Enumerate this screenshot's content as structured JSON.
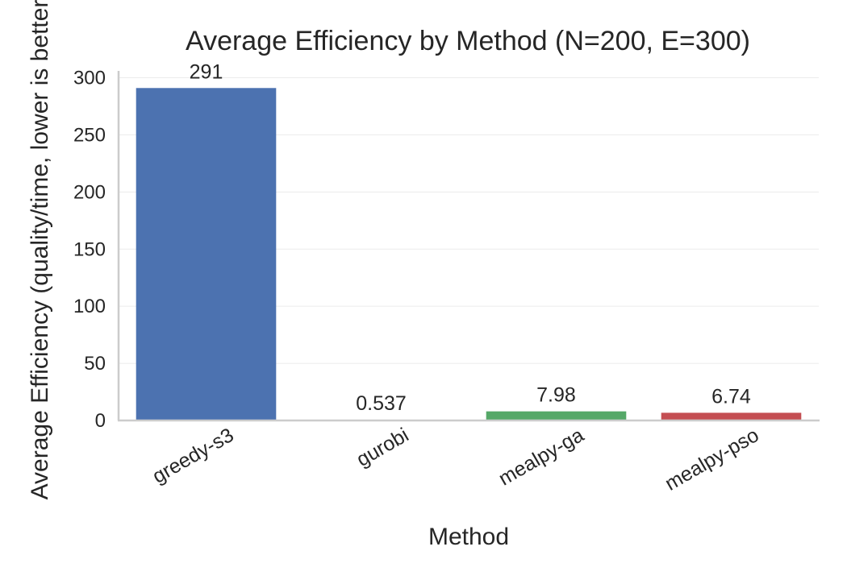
{
  "chart_data": {
    "type": "bar",
    "title": "Average Efficiency by Method (N=200, E=300)",
    "xlabel": "Method",
    "ylabel": "Average Efficiency (quality/time, lower is better)",
    "categories": [
      "greedy-s3",
      "gurobi",
      "mealpy-ga",
      "mealpy-pso"
    ],
    "values": [
      291,
      0.537,
      7.98,
      6.74
    ],
    "value_labels": [
      "291",
      "0.537",
      "7.98",
      "6.74"
    ],
    "colors": [
      "#4c72b0",
      "#dd8452",
      "#55a868",
      "#c44e52"
    ],
    "ylim": [
      0,
      306
    ],
    "yticks": [
      0,
      50,
      100,
      150,
      200,
      250,
      300
    ],
    "grid": true,
    "legend": "none"
  }
}
